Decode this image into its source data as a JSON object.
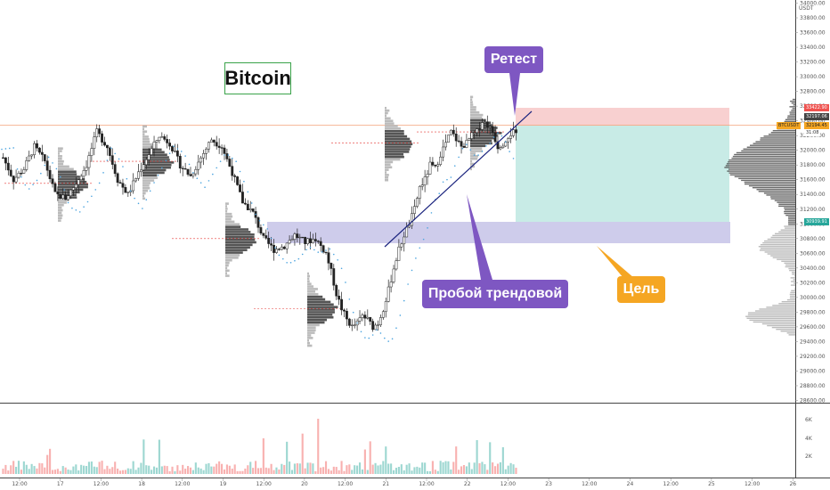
{
  "title": "Bitcoin",
  "annotations": {
    "retest": "Ретест",
    "breakout": "Пробой трендовой",
    "target": "Цель"
  },
  "header": {
    "currency": "USDT"
  },
  "colors": {
    "up": "#26a69a",
    "down": "#ef5350",
    "purple": "#7e57c2",
    "orange": "#f5a623",
    "zone": "#c5c3e8",
    "stop_zone": "#f8d0d0",
    "target_zone": "#c8ebe6",
    "vwap": "#4aa3df"
  },
  "price_tags": {
    "stop": "33422.90",
    "entry_line": "32197.06",
    "symbol": "BTCUSDT",
    "current": "32194.45",
    "countdown": "31:08",
    "target": "30939.91"
  },
  "chart_data": [
    {
      "type": "candlestick",
      "title": "Bitcoin",
      "x_tick_labels": [
        "12:00",
        "17",
        "12:00",
        "18",
        "12:00",
        "19",
        "12:00",
        "20",
        "12:00",
        "21",
        "12:00",
        "22",
        "12:00",
        "23",
        "12:00",
        "24",
        "12:00",
        "25",
        "12:00",
        "26"
      ],
      "y_tick_labels": [
        "34000.00",
        "33800.00",
        "33600.00",
        "33400.00",
        "33200.00",
        "33000.00",
        "32800.00",
        "32600.00",
        "32400.00",
        "32200.00",
        "32000.00",
        "31800.00",
        "31600.00",
        "31400.00",
        "31200.00",
        "31000.00",
        "30800.00",
        "30600.00",
        "30400.00",
        "30200.00",
        "30000.00",
        "29800.00",
        "29600.00",
        "29400.00",
        "29200.00",
        "29000.00",
        "28800.00",
        "28600.00"
      ],
      "ylim": [
        28550,
        34050
      ],
      "price_path": [
        [
          0,
          31900
        ],
        [
          4,
          31600
        ],
        [
          8,
          31750
        ],
        [
          12,
          32050
        ],
        [
          16,
          31850
        ],
        [
          20,
          31400
        ],
        [
          24,
          31350
        ],
        [
          28,
          31550
        ],
        [
          32,
          31800
        ],
        [
          36,
          32250
        ],
        [
          40,
          32050
        ],
        [
          44,
          31600
        ],
        [
          48,
          31400
        ],
        [
          52,
          31700
        ],
        [
          56,
          31950
        ],
        [
          60,
          32200
        ],
        [
          64,
          32100
        ],
        [
          68,
          31800
        ],
        [
          72,
          31650
        ],
        [
          76,
          31900
        ],
        [
          80,
          32150
        ],
        [
          84,
          32050
        ],
        [
          88,
          31700
        ],
        [
          92,
          31300
        ],
        [
          96,
          31150
        ],
        [
          100,
          30800
        ],
        [
          104,
          30650
        ],
        [
          108,
          30700
        ],
        [
          112,
          30850
        ],
        [
          116,
          30750
        ],
        [
          120,
          30800
        ],
        [
          124,
          30600
        ],
        [
          126,
          30350
        ],
        [
          128,
          30050
        ],
        [
          130,
          29850
        ],
        [
          132,
          29700
        ],
        [
          134,
          29600
        ],
        [
          136,
          29650
        ],
        [
          138,
          29750
        ],
        [
          140,
          29700
        ],
        [
          142,
          29600
        ],
        [
          144,
          29650
        ],
        [
          146,
          29850
        ],
        [
          148,
          30100
        ],
        [
          150,
          30400
        ],
        [
          152,
          30650
        ],
        [
          154,
          30850
        ],
        [
          156,
          31000
        ],
        [
          158,
          31200
        ],
        [
          160,
          31500
        ],
        [
          162,
          31600
        ],
        [
          164,
          31800
        ],
        [
          166,
          31750
        ],
        [
          168,
          31950
        ],
        [
          170,
          32100
        ],
        [
          172,
          32250
        ],
        [
          174,
          32150
        ],
        [
          176,
          32050
        ],
        [
          178,
          32100
        ],
        [
          180,
          32200
        ],
        [
          182,
          32250
        ],
        [
          184,
          32400
        ],
        [
          186,
          32350
        ],
        [
          188,
          32250
        ],
        [
          190,
          32050
        ],
        [
          192,
          32100
        ],
        [
          194,
          32200
        ],
        [
          196,
          32250
        ],
        [
          197,
          32194
        ]
      ],
      "volume_axis_labels": [
        "6K",
        "4K",
        "2K"
      ]
    }
  ]
}
